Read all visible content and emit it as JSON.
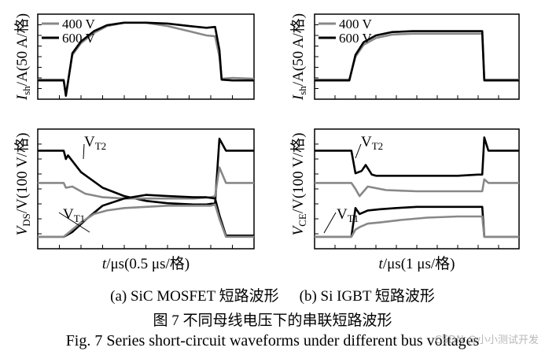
{
  "chart_data": [
    {
      "id": "sic",
      "type": "line",
      "panel_caption": "(a) SiC MOSFET 短路波形",
      "xlabel": "t/μs(0.5 μs/格)",
      "top": {
        "ylabel": "I_sh/A(50 A/格)",
        "ylabel_parts": {
          "sym": "I",
          "sub": "sh",
          "rest": "/A(50 A/格)"
        },
        "ylim": [
          0,
          100
        ],
        "legend": [
          "400 V",
          "600 V"
        ],
        "legend_position": "top-left",
        "series": [
          {
            "name": "400 V",
            "color": "#888888",
            "x": [
              0,
              0.08,
              0.12,
              0.13,
              0.16,
              0.2,
              0.26,
              0.32,
              0.4,
              0.5,
              0.6,
              0.7,
              0.78,
              0.82,
              0.84,
              0.85,
              0.9,
              1.0
            ],
            "y": [
              23,
              23,
              23,
              5,
              52,
              66,
              78,
              86,
              90,
              90,
              86,
              80,
              75,
              74,
              50,
              24,
              25,
              24
            ]
          },
          {
            "name": "600 V",
            "color": "#000000",
            "x": [
              0,
              0.08,
              0.12,
              0.13,
              0.16,
              0.2,
              0.26,
              0.32,
              0.4,
              0.5,
              0.6,
              0.7,
              0.78,
              0.82,
              0.84,
              0.85,
              0.9,
              1.0
            ],
            "y": [
              22,
              22,
              22,
              4,
              54,
              68,
              80,
              87,
              90,
              90,
              89,
              86,
              84,
              85,
              58,
              23,
              22,
              22
            ]
          }
        ]
      },
      "bottom": {
        "ylabel": "V_DS/V(100 V/格)",
        "ylabel_parts": {
          "sym": "V",
          "sub": "DS",
          "rest": "/V(100 V/格)"
        },
        "ylim": [
          0,
          100
        ],
        "annotations": [
          {
            "label": "V",
            "sub": "T2",
            "target": "upper traces"
          },
          {
            "label": "V",
            "sub": "T1",
            "target": "lower traces"
          }
        ],
        "series": [
          {
            "name": "V_T2 600 V",
            "color": "#000000",
            "x": [
              0,
              0.12,
              0.13,
              0.14,
              0.2,
              0.3,
              0.4,
              0.5,
              0.6,
              0.72,
              0.78,
              0.82,
              0.84,
              0.87,
              1.0
            ],
            "y": [
              82,
              82,
              75,
              78,
              64,
              51,
              44,
              40,
              38,
              37,
              37,
              38,
              92,
              82,
              82
            ]
          },
          {
            "name": "V_T2 400 V",
            "color": "#888888",
            "x": [
              0,
              0.12,
              0.13,
              0.16,
              0.22,
              0.3,
              0.4,
              0.5,
              0.6,
              0.72,
              0.8,
              0.82,
              0.84,
              0.87,
              1.0
            ],
            "y": [
              55,
              55,
              51,
              52,
              46,
              43,
              42,
              42,
              42,
              42,
              43,
              44,
              68,
              55,
              55
            ]
          },
          {
            "name": "V_T1 600 V",
            "color": "#000000",
            "x": [
              0,
              0.12,
              0.13,
              0.16,
              0.22,
              0.3,
              0.4,
              0.5,
              0.6,
              0.72,
              0.78,
              0.82,
              0.84,
              0.87,
              1.0
            ],
            "y": [
              10,
              10,
              11,
              14,
              24,
              36,
              42,
              45,
              44,
              43,
              43,
              42,
              28,
              11,
              11
            ]
          },
          {
            "name": "V_T1 400 V",
            "color": "#888888",
            "x": [
              0,
              0.12,
              0.14,
              0.2,
              0.26,
              0.32,
              0.4,
              0.5,
              0.6,
              0.72,
              0.8,
              0.82,
              0.84,
              0.87,
              1.0
            ],
            "y": [
              10,
              10,
              13,
              22,
              29,
              32,
              34,
              35,
              36,
              36,
              36,
              37,
              25,
              10,
              10
            ]
          }
        ]
      }
    },
    {
      "id": "igbt",
      "type": "line",
      "panel_caption": "(b) Si IGBT 短路波形",
      "xlabel": "t/μs(1 μs/格)",
      "top": {
        "ylabel": "I_sh/A(50 A/格)",
        "ylabel_parts": {
          "sym": "I",
          "sub": "sh",
          "rest": "/A(50 A/格)"
        },
        "ylim": [
          0,
          100
        ],
        "legend": [
          "400 V",
          "600 V"
        ],
        "legend_position": "top-left",
        "series": [
          {
            "name": "400 V",
            "color": "#888888",
            "x": [
              0,
              0.17,
              0.2,
              0.24,
              0.3,
              0.38,
              0.48,
              0.6,
              0.72,
              0.8,
              0.82,
              0.83,
              0.9,
              1.0
            ],
            "y": [
              23,
              23,
              50,
              64,
              72,
              76,
              77,
              77,
              77,
              77,
              77,
              23,
              23,
              23
            ]
          },
          {
            "name": "600 V",
            "color": "#000000",
            "x": [
              0,
              0.17,
              0.2,
              0.24,
              0.3,
              0.38,
              0.48,
              0.6,
              0.72,
              0.8,
              0.82,
              0.83,
              0.9,
              1.0
            ],
            "y": [
              22,
              22,
              52,
              67,
              75,
              79,
              80,
              80,
              80,
              80,
              80,
              22,
              22,
              22
            ]
          }
        ]
      },
      "bottom": {
        "ylabel": "V_CE/V(100 V/格)",
        "ylabel_parts": {
          "sym": "V",
          "sub": "CE",
          "rest": "/V(100 V/格)"
        },
        "ylim": [
          0,
          100
        ],
        "annotations": [
          {
            "label": "V",
            "sub": "T2",
            "target": "upper traces"
          },
          {
            "label": "V",
            "sub": "T1",
            "target": "lower traces"
          }
        ],
        "series": [
          {
            "name": "V_T2 600 V",
            "color": "#000000",
            "x": [
              0,
              0.18,
              0.2,
              0.23,
              0.25,
              0.28,
              0.3,
              0.4,
              0.5,
              0.6,
              0.7,
              0.8,
              0.82,
              0.83,
              0.85,
              1.0
            ],
            "y": [
              82,
              82,
              63,
              65,
              70,
              62,
              61,
              61,
              61,
              61,
              61,
              62,
              62,
              93,
              82,
              82
            ]
          },
          {
            "name": "V_T2 400 V",
            "color": "#888888",
            "x": [
              0,
              0.18,
              0.2,
              0.22,
              0.26,
              0.35,
              0.5,
              0.65,
              0.8,
              0.82,
              0.83,
              0.85,
              1.0
            ],
            "y": [
              55,
              55,
              50,
              44,
              52,
              49,
              48,
              48,
              48,
              48,
              58,
              55,
              55
            ]
          },
          {
            "name": "V_T1 600 V",
            "color": "#000000",
            "x": [
              0,
              0.18,
              0.2,
              0.22,
              0.26,
              0.32,
              0.4,
              0.5,
              0.6,
              0.7,
              0.8,
              0.82,
              0.83,
              1.0
            ],
            "y": [
              10,
              10,
              34,
              29,
              32,
              33,
              34,
              35,
              35,
              35,
              35,
              35,
              10,
              10
            ]
          },
          {
            "name": "V_T1 400 V",
            "color": "#888888",
            "x": [
              0,
              0.18,
              0.2,
              0.22,
              0.26,
              0.32,
              0.42,
              0.55,
              0.7,
              0.8,
              0.82,
              0.83,
              1.0
            ],
            "y": [
              10,
              10,
              16,
              18,
              21,
              22,
              24,
              26,
              27,
              27,
              27,
              10,
              10
            ]
          }
        ]
      }
    }
  ],
  "figure": {
    "captions_ab": {
      "a": "(a) SiC MOSFET 短路波形",
      "b": "(b) Si IGBT 短路波形"
    },
    "caption_cn": "图 7  不同母线电压下的串联短路波形",
    "caption_en": "Fig. 7 Series short-circuit waveforms under different bus voltages"
  },
  "watermark": "CSDN @小小测试开发"
}
